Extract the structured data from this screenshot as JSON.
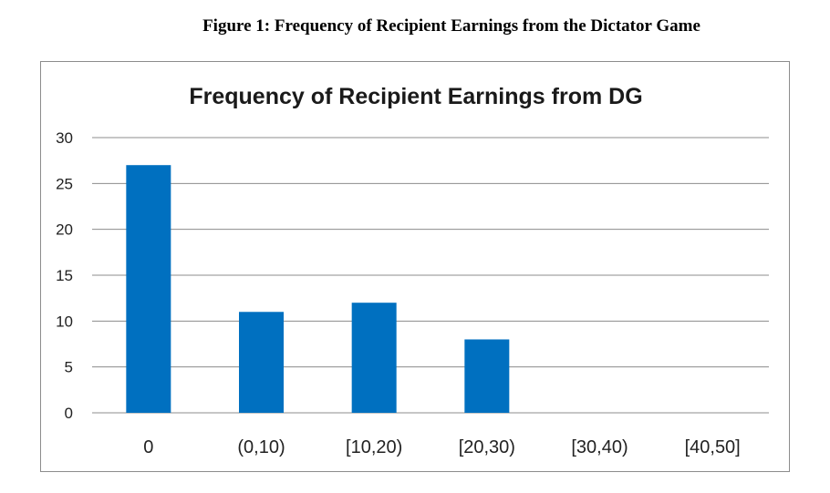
{
  "caption": "Figure 1: Frequency of Recipient Earnings from the Dictator Game",
  "colors": {
    "bar": "#0070C0",
    "grid": "#8c8c8c"
  },
  "chart_data": {
    "type": "bar",
    "title": "Frequency of Recipient Earnings from DG",
    "categories": [
      "0",
      "(0,10)",
      "[10,20)",
      "[20,30)",
      "[30,40)",
      "[40,50]"
    ],
    "values": [
      27,
      11,
      12,
      8,
      0,
      0
    ],
    "xlabel": "",
    "ylabel": "",
    "ylim": [
      0,
      30
    ],
    "yticks": [
      0,
      5,
      10,
      15,
      20,
      25,
      30
    ],
    "grid": true,
    "legend": "none"
  }
}
